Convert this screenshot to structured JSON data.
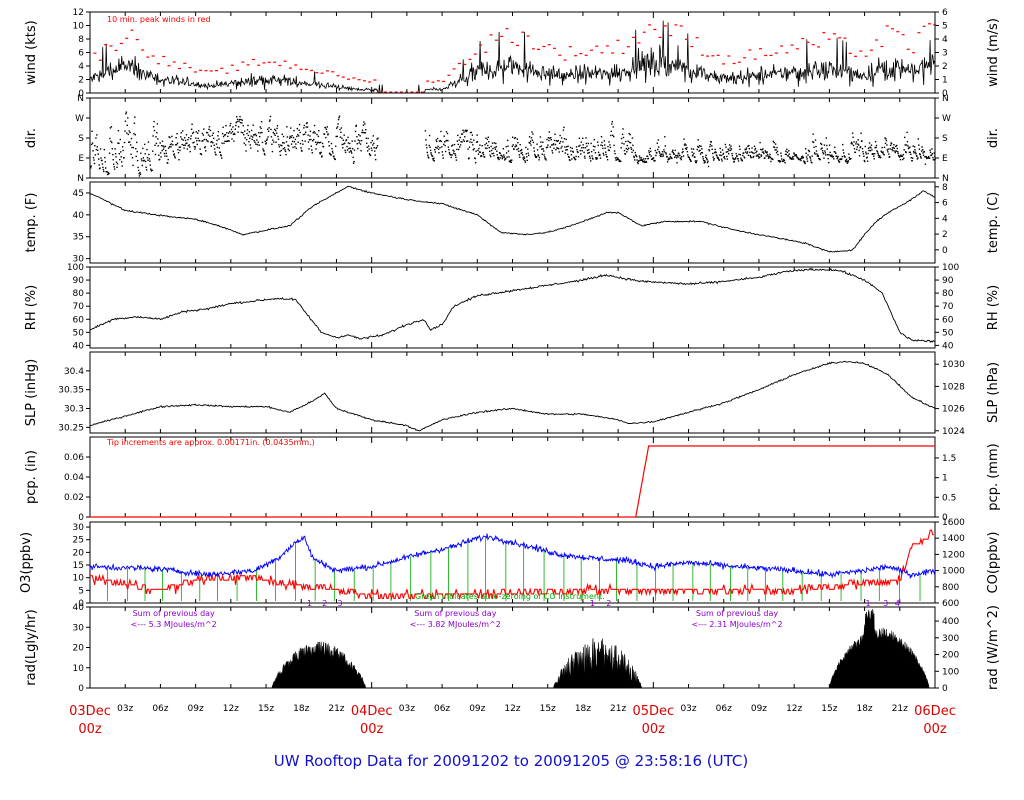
{
  "title": "UW Rooftop Data for 20091202  to  20091205 @ 23:58:16  (UTC)",
  "colors": {
    "red": "#ff0000",
    "blue": "#0000ff",
    "green": "#00aa00",
    "purple": "#8800cc",
    "black": "#000000"
  },
  "time_axis": {
    "hour_ticks": [
      "03z",
      "06z",
      "09z",
      "12z",
      "15z",
      "18z",
      "21z"
    ],
    "date_labels": [
      {
        "day": "03Dec",
        "hour": "00z",
        "t": 0
      },
      {
        "day": "04Dec",
        "hour": "00z",
        "t": 24
      },
      {
        "day": "05Dec",
        "hour": "00z",
        "t": 48
      },
      {
        "day": "06Dec",
        "hour": "00z",
        "t": 72
      }
    ]
  },
  "chart_data": [
    {
      "type": "line",
      "id": "wind",
      "ylabel_left": "wind (kts)",
      "ylabel_right": "wind (m/s)",
      "ylim": [
        0,
        12
      ],
      "left_ticks": [
        0,
        2,
        4,
        6,
        8,
        10,
        12
      ],
      "right_ticks": [
        0,
        1,
        2,
        3,
        4,
        5,
        6
      ],
      "annotation": "10 min. peak winds in red",
      "knots": [
        [
          0,
          2
        ],
        [
          3,
          4
        ],
        [
          6,
          2
        ],
        [
          10,
          1
        ],
        [
          15,
          2
        ],
        [
          18,
          1.5
        ],
        [
          23,
          0.5
        ],
        [
          30,
          0.5
        ],
        [
          33,
          3
        ],
        [
          36,
          4
        ],
        [
          40,
          2.5
        ],
        [
          45,
          3
        ],
        [
          48,
          4.5
        ],
        [
          50,
          4
        ],
        [
          54,
          2
        ],
        [
          60,
          3
        ],
        [
          63,
          3.5
        ],
        [
          66,
          2.5
        ],
        [
          68,
          4
        ],
        [
          70,
          3
        ],
        [
          72,
          5
        ]
      ]
    },
    {
      "type": "scatter",
      "id": "dir",
      "ylabel_left": "dir.",
      "ylabel_right": "dir.",
      "left_ticks": [
        "N",
        "E",
        "S",
        "W",
        "N"
      ],
      "right_ticks": [
        "N",
        "E",
        "S",
        "W",
        "N"
      ]
    },
    {
      "type": "line",
      "id": "temp",
      "ylabel_left": "temp. (F)",
      "ylabel_right": "temp. (C)",
      "ylim": [
        29,
        47.5
      ],
      "left_ticks": [
        30,
        35,
        40,
        45
      ],
      "right_ticks": [
        0,
        2,
        4,
        6,
        8
      ],
      "knots": [
        [
          0,
          45
        ],
        [
          3,
          41
        ],
        [
          7,
          39.5
        ],
        [
          9,
          39
        ],
        [
          11,
          37.5
        ],
        [
          13,
          35.5
        ],
        [
          15,
          36.5
        ],
        [
          17,
          37.5
        ],
        [
          19,
          42
        ],
        [
          21,
          45
        ],
        [
          22,
          46.5
        ],
        [
          24,
          45
        ],
        [
          27,
          43.5
        ],
        [
          30,
          42.5
        ],
        [
          33,
          40
        ],
        [
          35,
          36
        ],
        [
          37,
          35.5
        ],
        [
          39,
          36
        ],
        [
          41,
          37.5
        ],
        [
          44,
          40.5
        ],
        [
          45,
          40.5
        ],
        [
          47,
          37.5
        ],
        [
          49,
          38.5
        ],
        [
          52,
          38.5
        ],
        [
          55,
          36.5
        ],
        [
          58,
          35
        ],
        [
          61,
          33.5
        ],
        [
          63,
          31.5
        ],
        [
          65,
          32
        ],
        [
          66,
          35.5
        ],
        [
          67,
          38.5
        ],
        [
          68,
          40.5
        ],
        [
          70,
          43.5
        ],
        [
          71,
          45.5
        ],
        [
          72,
          44
        ]
      ]
    },
    {
      "type": "line",
      "id": "rh",
      "ylabel_left": "RH (%)",
      "ylabel_right": "RH (%)",
      "ylim": [
        38,
        100
      ],
      "left_ticks": [
        40,
        50,
        60,
        70,
        80,
        90,
        100
      ],
      "right_ticks": [
        40,
        50,
        60,
        70,
        80,
        90,
        100
      ],
      "knots": [
        [
          0,
          52
        ],
        [
          2,
          60
        ],
        [
          4,
          62
        ],
        [
          6,
          60
        ],
        [
          8,
          66
        ],
        [
          10,
          68
        ],
        [
          12,
          72
        ],
        [
          16,
          76
        ],
        [
          17.5,
          75
        ],
        [
          19,
          58
        ],
        [
          19.7,
          50
        ],
        [
          21,
          46
        ],
        [
          22,
          48
        ],
        [
          23,
          45
        ],
        [
          25,
          48
        ],
        [
          27,
          56
        ],
        [
          28.5,
          60
        ],
        [
          29,
          52
        ],
        [
          30,
          56
        ],
        [
          31,
          70
        ],
        [
          33,
          78
        ],
        [
          36,
          82
        ],
        [
          39,
          86
        ],
        [
          42,
          90
        ],
        [
          44,
          94
        ],
        [
          45,
          92
        ],
        [
          47,
          89
        ],
        [
          49,
          88
        ],
        [
          51,
          87
        ],
        [
          53,
          88
        ],
        [
          55,
          90
        ],
        [
          57,
          92
        ],
        [
          59,
          96
        ],
        [
          61,
          98
        ],
        [
          63,
          98
        ],
        [
          64,
          97
        ],
        [
          66,
          90
        ],
        [
          67.5,
          80
        ],
        [
          68.5,
          60
        ],
        [
          69,
          50
        ],
        [
          70,
          44
        ],
        [
          72,
          43
        ]
      ]
    },
    {
      "type": "line",
      "id": "slp",
      "ylabel_left": "SLP (inHg)",
      "ylabel_right": "SLP (hPa)",
      "ylim": [
        30.235,
        30.45
      ],
      "left_ticks": [
        30.25,
        30.3,
        30.35,
        30.4
      ],
      "right_ticks": [
        1024,
        1026,
        1028,
        1030
      ],
      "knots": [
        [
          0,
          30.255
        ],
        [
          3,
          30.28
        ],
        [
          6,
          30.305
        ],
        [
          9,
          30.31
        ],
        [
          12,
          30.305
        ],
        [
          15,
          30.305
        ],
        [
          17,
          30.29
        ],
        [
          19,
          30.32
        ],
        [
          20,
          30.34
        ],
        [
          21,
          30.3
        ],
        [
          24,
          30.27
        ],
        [
          27,
          30.255
        ],
        [
          28,
          30.24
        ],
        [
          30,
          30.27
        ],
        [
          33,
          30.29
        ],
        [
          36,
          30.3
        ],
        [
          39,
          30.285
        ],
        [
          42,
          30.285
        ],
        [
          45,
          30.27
        ],
        [
          46,
          30.26
        ],
        [
          48,
          30.265
        ],
        [
          51,
          30.29
        ],
        [
          54,
          30.315
        ],
        [
          57,
          30.35
        ],
        [
          60,
          30.39
        ],
        [
          63,
          30.42
        ],
        [
          64.5,
          30.425
        ],
        [
          66,
          30.42
        ],
        [
          68,
          30.39
        ],
        [
          70,
          30.33
        ],
        [
          72,
          30.3
        ]
      ]
    },
    {
      "type": "line",
      "id": "pcp",
      "ylabel_left": "pcp. (in)",
      "ylabel_right": "pcp. (mm)",
      "ylim": [
        0,
        0.08
      ],
      "left_ticks": [
        0.0,
        0.02,
        0.04,
        0.06
      ],
      "right_ticks": [
        0,
        0.5,
        1,
        1.5
      ],
      "annotation": "Tip increments are approx. 0.00171in. (0.0435mm.)",
      "knots": [
        [
          0,
          0
        ],
        [
          46.5,
          0
        ],
        [
          47.6,
          0.071
        ],
        [
          72,
          0.071
        ]
      ]
    },
    {
      "type": "line",
      "id": "o3co",
      "ylabel_left": "O3(ppbv)",
      "ylabel_right": "CO(ppbv)",
      "left_ticks": [
        0,
        5,
        10,
        15,
        20,
        25,
        30
      ],
      "right_ticks": [
        600,
        800,
        1000,
        1200,
        1400,
        1600
      ],
      "annotation": "Green indicates auto-zeroing of CO instrument.",
      "series": [
        {
          "name": "CO",
          "ylim": [
            600,
            1600
          ],
          "knots": [
            [
              0,
              1050
            ],
            [
              6,
              1020
            ],
            [
              10,
              950
            ],
            [
              14,
              1000
            ],
            [
              16,
              1150
            ],
            [
              17.5,
              1350
            ],
            [
              18.3,
              1400
            ],
            [
              19,
              1150
            ],
            [
              21,
              1000
            ],
            [
              24,
              1050
            ],
            [
              28,
              1200
            ],
            [
              31,
              1300
            ],
            [
              33,
              1400
            ],
            [
              34,
              1420
            ],
            [
              36,
              1350
            ],
            [
              40,
              1200
            ],
            [
              43,
              1150
            ],
            [
              46,
              1120
            ],
            [
              48,
              1050
            ],
            [
              51,
              1100
            ],
            [
              55,
              1050
            ],
            [
              60,
              1000
            ],
            [
              63,
              950
            ],
            [
              66,
              1000
            ],
            [
              68,
              1050
            ],
            [
              70,
              950
            ],
            [
              72,
              1000
            ]
          ]
        },
        {
          "name": "O3",
          "ylim": [
            0,
            32
          ],
          "knots": [
            [
              0,
              10
            ],
            [
              6,
              5
            ],
            [
              10,
              10
            ],
            [
              14,
              10
            ],
            [
              16,
              8
            ],
            [
              20,
              6
            ],
            [
              24,
              3
            ],
            [
              30,
              3
            ],
            [
              40,
              5
            ],
            [
              50,
              5
            ],
            [
              60,
              5
            ],
            [
              66,
              8
            ],
            [
              69,
              9
            ],
            [
              70,
              22
            ],
            [
              71,
              25
            ],
            [
              72,
              28
            ]
          ]
        }
      ]
    },
    {
      "type": "area",
      "id": "rad",
      "ylabel_left": "rad(Lgly/hr)",
      "ylabel_right": "rad (W/m^2)",
      "ylim": [
        0,
        40
      ],
      "left_ticks": [
        0,
        10,
        20,
        30,
        40
      ],
      "right_ticks": [
        0,
        100,
        200,
        300,
        400
      ],
      "day_notes": [
        {
          "line1": "Sum of previous day",
          "line2": "<--- 5.3 MJoules/m^2",
          "t": 5
        },
        {
          "line1": "Sum of previous day",
          "line2": "<--- 3.82 MJoules/m^2",
          "t": 29
        },
        {
          "line1": "Sum of previous day",
          "line2": "<--- 2.31 MJoules/m^2",
          "t": 53
        }
      ],
      "markers": [
        {
          "label": "1",
          "t": 18.7
        },
        {
          "label": "2",
          "t": 20.0
        },
        {
          "label": "3",
          "t": 21.3
        },
        {
          "label": "1",
          "t": 42.8
        },
        {
          "label": "2",
          "t": 44.2
        },
        {
          "label": "1",
          "t": 66.3
        },
        {
          "label": "3",
          "t": 67.8
        },
        {
          "label": "4",
          "t": 68.8
        }
      ],
      "days": [
        {
          "start": 15.5,
          "end": 23.5,
          "peak": 23,
          "jitter": 0.35
        },
        {
          "start": 39.5,
          "end": 47.0,
          "peak": 25,
          "jitter": 0.7
        },
        {
          "start": 63.0,
          "end": 71.5,
          "peak": 30,
          "jitter": 0.2
        }
      ]
    }
  ]
}
